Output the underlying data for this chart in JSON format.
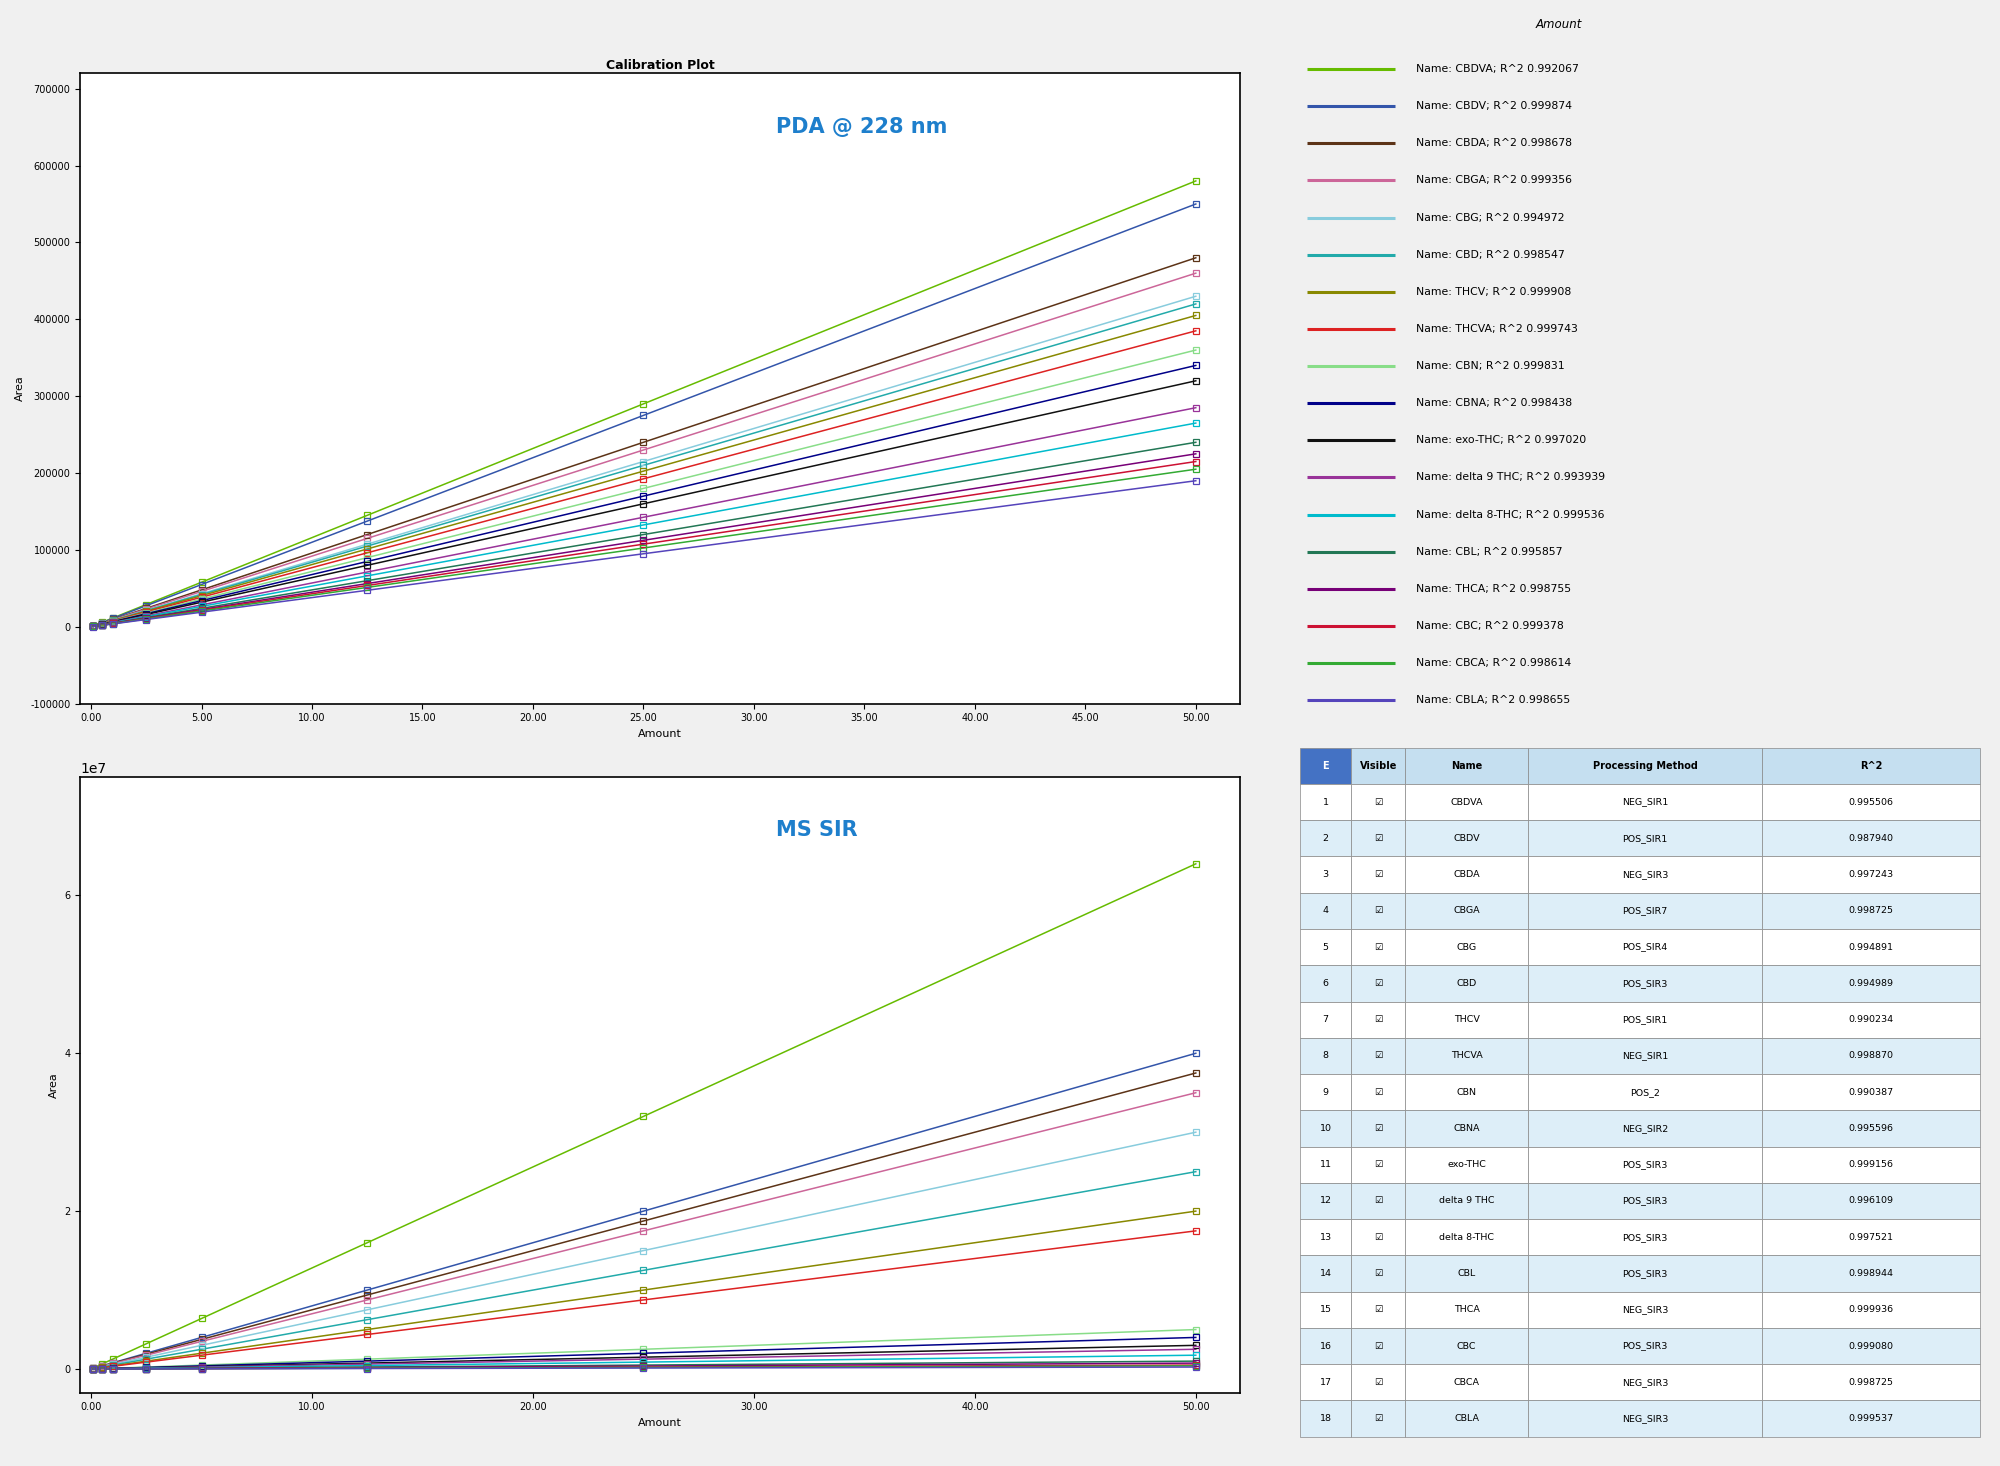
{
  "title_pda": "Calibration Plot",
  "label_pda": "PDA @ 228 nm",
  "label_ms": "MS SIR",
  "xlabel": "Amount",
  "ylabel": "Area",
  "x_points": [
    0.1,
    0.5,
    1.0,
    2.5,
    5.0,
    12.5,
    25.0,
    50.0
  ],
  "pda_ylim": [
    -100000,
    720000
  ],
  "ms_ylim": [
    -3000000,
    75000000
  ],
  "legend_entries": [
    {
      "name": "CBDVA",
      "r2": "0.992067",
      "color": "#66bb00"
    },
    {
      "name": "CBDV",
      "r2": "0.999874",
      "color": "#3355aa"
    },
    {
      "name": "CBDA",
      "r2": "0.998678",
      "color": "#5c3317"
    },
    {
      "name": "CBGA",
      "r2": "0.999356",
      "color": "#cc6699"
    },
    {
      "name": "CBG",
      "r2": "0.994972",
      "color": "#88ccdd"
    },
    {
      "name": "CBD",
      "r2": "0.998547",
      "color": "#22aaaa"
    },
    {
      "name": "THCV",
      "r2": "0.999908",
      "color": "#888800"
    },
    {
      "name": "THCVA",
      "r2": "0.999743",
      "color": "#dd2222"
    },
    {
      "name": "CBN",
      "r2": "0.999831",
      "color": "#88dd88"
    },
    {
      "name": "CBNA",
      "r2": "0.998438",
      "color": "#000088"
    },
    {
      "name": "exo-THC",
      "r2": "0.997020",
      "color": "#111111"
    },
    {
      "name": "delta 9 THC",
      "r2": "0.993939",
      "color": "#993399"
    },
    {
      "name": "delta 8-THC",
      "r2": "0.999536",
      "color": "#00bbcc"
    },
    {
      "name": "CBL",
      "r2": "0.995857",
      "color": "#227755"
    },
    {
      "name": "THCA",
      "r2": "0.998755",
      "color": "#770077"
    },
    {
      "name": "CBC",
      "r2": "0.999378",
      "color": "#cc1133"
    },
    {
      "name": "CBCA",
      "r2": "0.998614",
      "color": "#33aa33"
    },
    {
      "name": "CBLA",
      "r2": "0.998655",
      "color": "#5544bb"
    }
  ],
  "pda_slopes": [
    11600,
    11000,
    9600,
    9200,
    8600,
    8400,
    8100,
    7700,
    7200,
    6800,
    6400,
    5700,
    5300,
    4800,
    4500,
    4300,
    4100,
    3800
  ],
  "ms_slopes": [
    1280000,
    800000,
    750000,
    700000,
    600000,
    500000,
    400000,
    350000,
    100000,
    80000,
    60000,
    50000,
    35000,
    20000,
    15000,
    10000,
    8000,
    5000
  ],
  "table_data": [
    [
      1,
      "CBDVA",
      "NEG_SIR1",
      "0.995506"
    ],
    [
      2,
      "CBDV",
      "POS_SIR1",
      "0.987940"
    ],
    [
      3,
      "CBDA",
      "NEG_SIR3",
      "0.997243"
    ],
    [
      4,
      "CBGA",
      "POS_SIR7",
      "0.998725"
    ],
    [
      5,
      "CBG",
      "POS_SIR4",
      "0.994891"
    ],
    [
      6,
      "CBD",
      "POS_SIR3",
      "0.994989"
    ],
    [
      7,
      "THCV",
      "POS_SIR1",
      "0.990234"
    ],
    [
      8,
      "THCVA",
      "NEG_SIR1",
      "0.998870"
    ],
    [
      9,
      "CBN",
      "POS_2",
      "0.990387"
    ],
    [
      10,
      "CBNA",
      "NEG_SIR2",
      "0.995596"
    ],
    [
      11,
      "exo-THC",
      "POS_SIR3",
      "0.999156"
    ],
    [
      12,
      "delta 9 THC",
      "POS_SIR3",
      "0.996109"
    ],
    [
      13,
      "delta 8-THC",
      "POS_SIR3",
      "0.997521"
    ],
    [
      14,
      "CBL",
      "POS_SIR3",
      "0.998944"
    ],
    [
      15,
      "THCA",
      "NEG_SIR3",
      "0.999936"
    ],
    [
      16,
      "CBC",
      "POS_SIR3",
      "0.999080"
    ],
    [
      17,
      "CBCA",
      "NEG_SIR3",
      "0.998725"
    ],
    [
      18,
      "CBLA",
      "NEG_SIR3",
      "0.999537"
    ]
  ],
  "background_color": "#f0f0f0"
}
